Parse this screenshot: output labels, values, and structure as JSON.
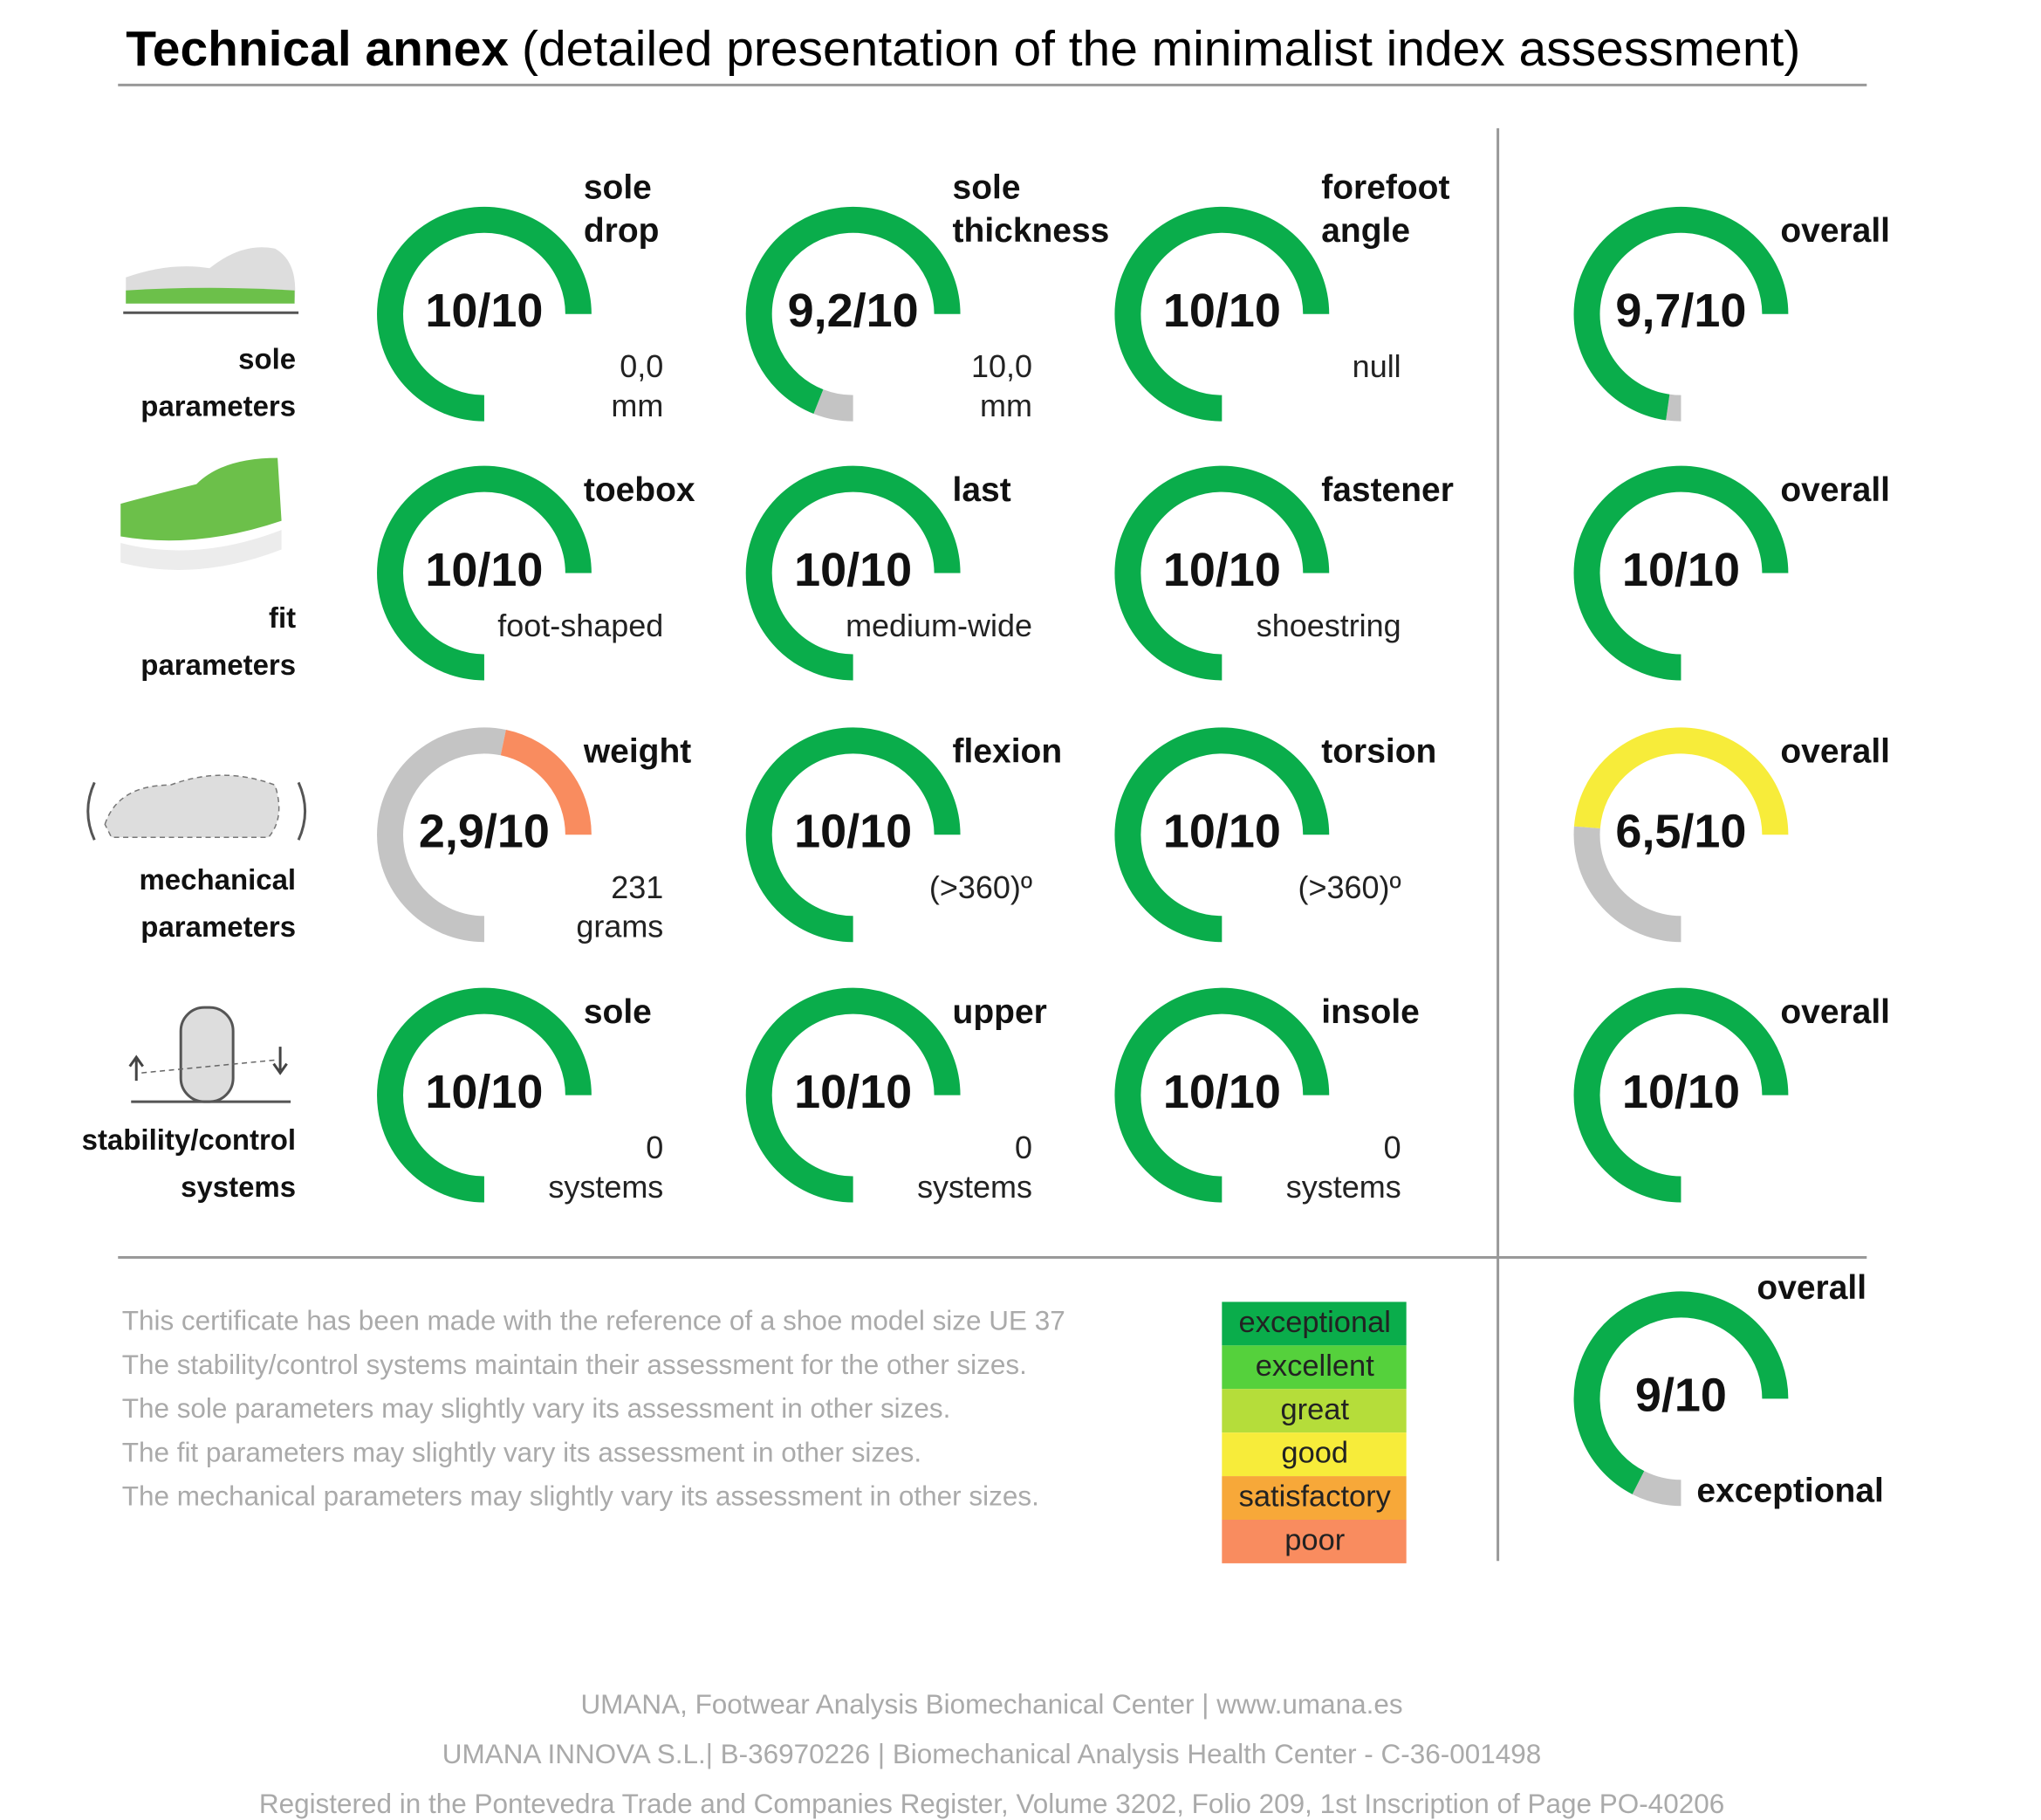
{
  "header": {
    "title_bold": "Technical annex",
    "title_rest": "(detailed presentation of the minimalist index assessment)"
  },
  "scale_max": 10,
  "remainder_color": "#c4c4c4",
  "rows": [
    {
      "label": [
        "sole",
        "parameters"
      ],
      "gauges": [
        {
          "title": [
            "sole",
            "drop"
          ],
          "score": 10,
          "score_label": "10/10",
          "color": "#0aad4b",
          "detail": [
            "0,0",
            "mm"
          ]
        },
        {
          "title": [
            "sole",
            "thickness"
          ],
          "score": 9.2,
          "score_label": "9,2/10",
          "color": "#0aad4b",
          "detail": [
            "10,0",
            "mm"
          ]
        },
        {
          "title": [
            "forefoot",
            "angle"
          ],
          "score": 10,
          "score_label": "10/10",
          "color": "#0aad4b",
          "detail": [
            "null"
          ]
        }
      ],
      "overall": {
        "title": [
          "overall"
        ],
        "score": 9.7,
        "score_label": "9,7/10",
        "color": "#0aad4b"
      }
    },
    {
      "label": [
        "fit",
        "parameters"
      ],
      "gauges": [
        {
          "title": [
            "toebox"
          ],
          "score": 10,
          "score_label": "10/10",
          "color": "#0aad4b",
          "detail": [
            "foot-shaped"
          ]
        },
        {
          "title": [
            "last"
          ],
          "score": 10,
          "score_label": "10/10",
          "color": "#0aad4b",
          "detail": [
            "medium-wide"
          ]
        },
        {
          "title": [
            "fastener"
          ],
          "score": 10,
          "score_label": "10/10",
          "color": "#0aad4b",
          "detail": [
            "shoestring"
          ]
        }
      ],
      "overall": {
        "title": [
          "overall"
        ],
        "score": 10,
        "score_label": "10/10",
        "color": "#0aad4b"
      }
    },
    {
      "label": [
        "mechanical",
        "parameters"
      ],
      "gauges": [
        {
          "title": [
            "weight"
          ],
          "score": 2.9,
          "score_label": "2,9/10",
          "color": "#f98c5f",
          "detail": [
            "231",
            "grams"
          ]
        },
        {
          "title": [
            "flexion"
          ],
          "score": 10,
          "score_label": "10/10",
          "color": "#0aad4b",
          "detail": [
            "(>360)º"
          ]
        },
        {
          "title": [
            "torsion"
          ],
          "score": 10,
          "score_label": "10/10",
          "color": "#0aad4b",
          "detail": [
            "(>360)º"
          ]
        }
      ],
      "overall": {
        "title": [
          "overall"
        ],
        "score": 6.5,
        "score_label": "6,5/10",
        "color": "#f7ec3a"
      }
    },
    {
      "label": [
        "stability/control",
        "systems"
      ],
      "gauges": [
        {
          "title": [
            "sole"
          ],
          "score": 10,
          "score_label": "10/10",
          "color": "#0aad4b",
          "detail": [
            "0",
            "systems"
          ]
        },
        {
          "title": [
            "upper"
          ],
          "score": 10,
          "score_label": "10/10",
          "color": "#0aad4b",
          "detail": [
            "0",
            "systems"
          ]
        },
        {
          "title": [
            "insole"
          ],
          "score": 10,
          "score_label": "10/10",
          "color": "#0aad4b",
          "detail": [
            "0",
            "systems"
          ]
        }
      ],
      "overall": {
        "title": [
          "overall"
        ],
        "score": 10,
        "score_label": "10/10",
        "color": "#0aad4b"
      }
    }
  ],
  "final": {
    "title": "overall",
    "score": 9,
    "score_label": "9/10",
    "color": "#0aad4b",
    "rating": "exceptional"
  },
  "notes": [
    "This certificate has been made with the reference of a shoe model size UE 37",
    "The stability/control systems maintain their assessment for the other sizes.",
    "The sole parameters may slightly vary its assessment in other sizes.",
    "The fit parameters may slightly vary its assessment in other sizes.",
    "The mechanical parameters may slightly vary its assessment in other sizes."
  ],
  "legend": [
    {
      "label": "exceptional",
      "color": "#0aad4b"
    },
    {
      "label": "excellent",
      "color": "#55d13c"
    },
    {
      "label": "great",
      "color": "#b5dd3a"
    },
    {
      "label": "good",
      "color": "#f7ec3a"
    },
    {
      "label": "satisfactory",
      "color": "#f7a839"
    },
    {
      "label": "poor",
      "color": "#f98c5f"
    }
  ],
  "footer": [
    "UMANA, Footwear Analysis Biomechanical Center | www.umana.es",
    "UMANA INNOVA S.L.| B-36970226 | Biomechanical Analysis Health Center - C-36-001498",
    "Registered in the Pontevedra Trade and Companies Register, Volume 3202, Folio 209, 1st Inscription of Page PO-40206"
  ]
}
